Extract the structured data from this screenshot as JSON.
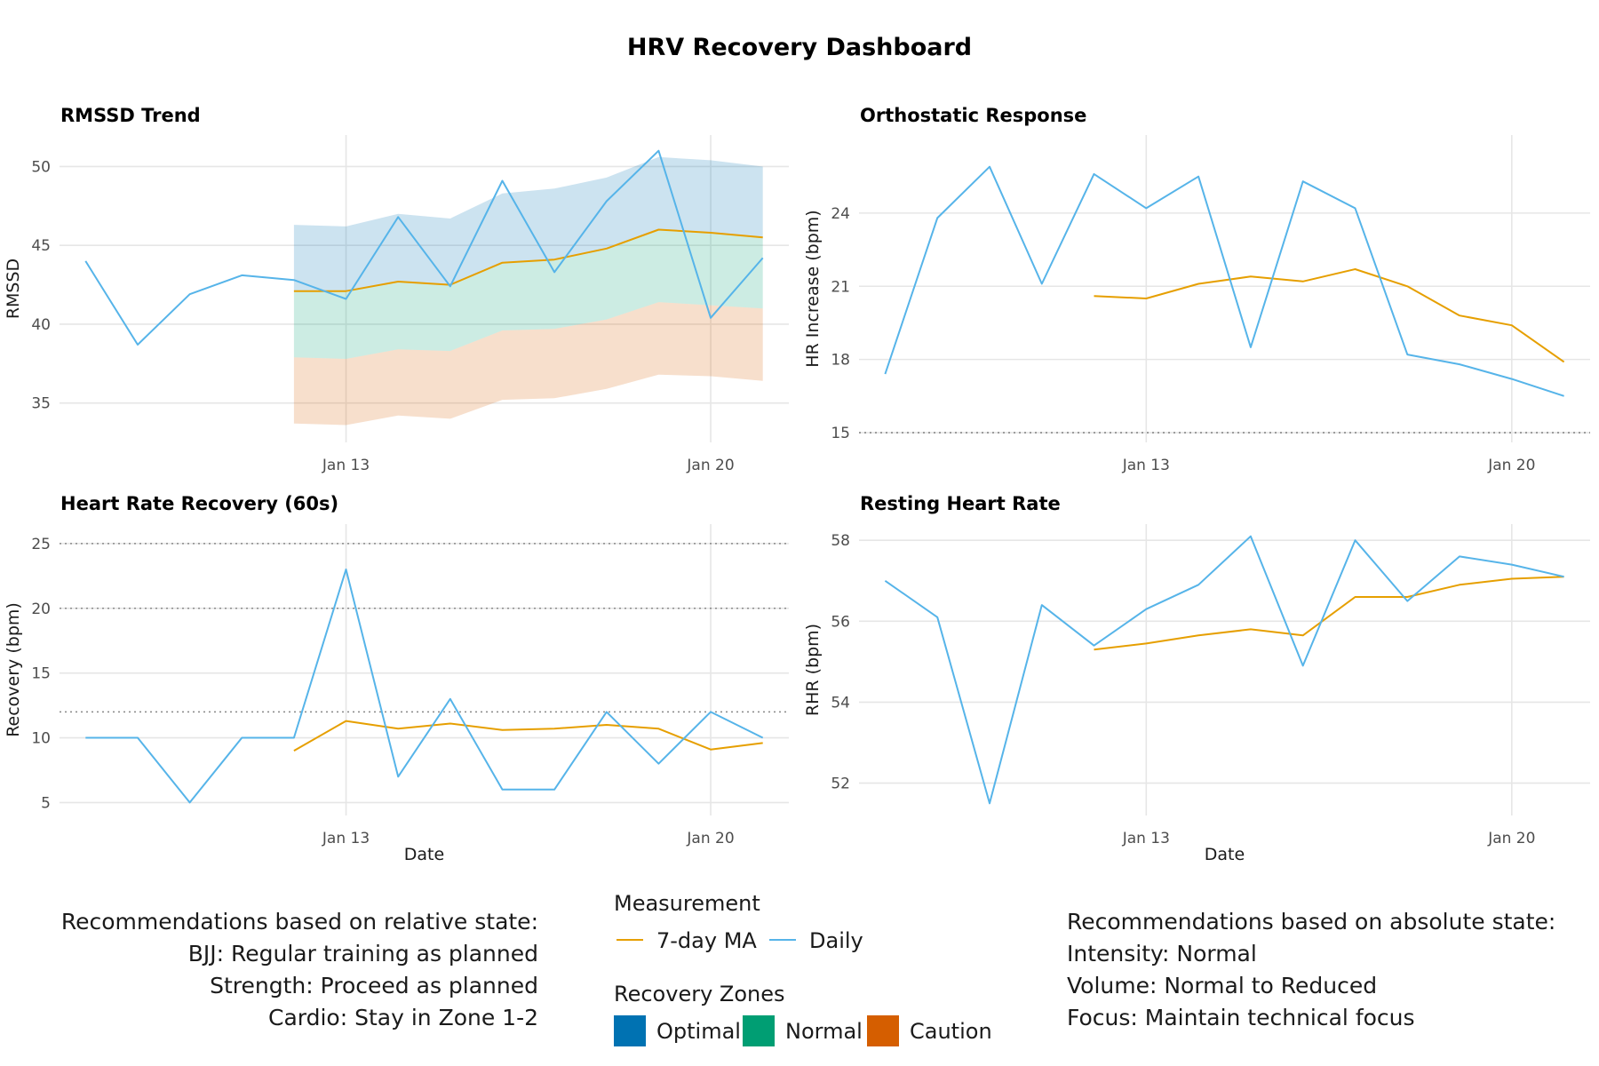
{
  "title": "HRV Recovery Dashboard",
  "colors": {
    "daily": "#56B4E9",
    "ma": "#E69F00",
    "optimal": "#0072B2",
    "normal": "#009E73",
    "caution": "#D55E00",
    "grid": "#e6e6e6",
    "text": "#1a1a1a",
    "reference_line": "#888888"
  },
  "legend": {
    "measurement_title": "Measurement",
    "measurement_items": [
      {
        "label": "7-day MA",
        "color": "#E69F00"
      },
      {
        "label": "Daily",
        "color": "#56B4E9"
      }
    ],
    "zones_title": "Recovery Zones",
    "zone_items": [
      {
        "label": "Optimal",
        "color": "#0072B2"
      },
      {
        "label": "Normal",
        "color": "#009E73"
      },
      {
        "label": "Caution",
        "color": "#D55E00"
      }
    ]
  },
  "recommendations_relative": {
    "heading": "Recommendations based on relative state:",
    "lines": [
      "BJJ: Regular training as planned",
      "Strength: Proceed as planned",
      "Cardio: Stay in Zone 1-2"
    ]
  },
  "recommendations_absolute": {
    "heading": "Recommendations based on absolute state:",
    "lines": [
      "Intensity: Normal",
      "Volume: Normal to Reduced",
      "Focus: Maintain technical focus"
    ]
  },
  "chart_data": [
    {
      "type": "line",
      "title": "RMSSD Trend",
      "xlabel": "",
      "ylabel": "RMSSD",
      "x": [
        "Jan 08",
        "Jan 09",
        "Jan 10",
        "Jan 11",
        "Jan 12",
        "Jan 13",
        "Jan 14",
        "Jan 15",
        "Jan 16",
        "Jan 17",
        "Jan 18",
        "Jan 19",
        "Jan 20",
        "Jan 21"
      ],
      "xticks": [
        "Jan 13",
        "Jan 20"
      ],
      "xlim": [
        "Jan 08",
        "Jan 21"
      ],
      "ylim": [
        32.5,
        52
      ],
      "yticks": [
        35,
        40,
        45,
        50
      ],
      "series": [
        {
          "name": "Daily",
          "color": "#56B4E9",
          "values": [
            44.0,
            38.7,
            41.9,
            43.1,
            42.8,
            41.6,
            46.8,
            42.4,
            49.1,
            43.3,
            47.8,
            51.0,
            40.4,
            44.2
          ]
        },
        {
          "name": "7-day MA",
          "color": "#E69F00",
          "values": [
            null,
            null,
            null,
            null,
            42.1,
            42.1,
            42.7,
            42.5,
            43.9,
            44.1,
            44.8,
            46.0,
            45.8,
            45.5
          ]
        }
      ],
      "bands": [
        {
          "name": "Caution",
          "color": "#D55E00",
          "lower": [
            33.7,
            33.6,
            34.2,
            34.0,
            35.2,
            35.3,
            35.9,
            36.8,
            36.7,
            36.4
          ],
          "upper": [
            37.9,
            37.8,
            38.4,
            38.3,
            39.6,
            39.7,
            40.3,
            41.4,
            41.2,
            41.0
          ]
        },
        {
          "name": "Normal",
          "color": "#009E73",
          "lower": [
            37.9,
            37.8,
            38.4,
            38.3,
            39.6,
            39.7,
            40.3,
            41.4,
            41.2,
            41.0
          ],
          "upper": [
            42.1,
            42.1,
            42.7,
            42.5,
            43.9,
            44.1,
            44.8,
            46.0,
            45.8,
            45.5
          ]
        },
        {
          "name": "Optimal",
          "color": "#0072B2",
          "lower": [
            42.1,
            42.1,
            42.7,
            42.5,
            43.9,
            44.1,
            44.8,
            46.0,
            45.8,
            45.5
          ],
          "upper": [
            46.3,
            46.2,
            47.0,
            46.7,
            48.3,
            48.6,
            49.3,
            50.6,
            50.4,
            50.0
          ]
        }
      ],
      "band_x": [
        "Jan 12",
        "Jan 13",
        "Jan 14",
        "Jan 15",
        "Jan 16",
        "Jan 17",
        "Jan 18",
        "Jan 19",
        "Jan 20",
        "Jan 21"
      ],
      "hlines": [],
      "grid": true
    },
    {
      "type": "line",
      "title": "Orthostatic Response",
      "xlabel": "",
      "ylabel": "HR Increase (bpm)",
      "x": [
        "Jan 08",
        "Jan 09",
        "Jan 10",
        "Jan 11",
        "Jan 12",
        "Jan 13",
        "Jan 14",
        "Jan 15",
        "Jan 16",
        "Jan 17",
        "Jan 18",
        "Jan 19",
        "Jan 20",
        "Jan 21"
      ],
      "xticks": [
        "Jan 13",
        "Jan 20"
      ],
      "xlim": [
        "Jan 08",
        "Jan 21"
      ],
      "ylim": [
        14.6,
        27.2
      ],
      "yticks": [
        15,
        18,
        21,
        24
      ],
      "series": [
        {
          "name": "Daily",
          "color": "#56B4E9",
          "values": [
            17.4,
            23.8,
            25.9,
            21.1,
            25.6,
            24.2,
            25.5,
            18.5,
            25.3,
            24.2,
            18.2,
            17.8,
            17.2,
            16.5
          ]
        },
        {
          "name": "7-day MA",
          "color": "#E69F00",
          "values": [
            null,
            null,
            null,
            null,
            20.6,
            20.5,
            21.1,
            21.4,
            21.2,
            21.7,
            21.0,
            19.8,
            19.4,
            17.9
          ]
        }
      ],
      "hlines": [
        15
      ],
      "grid": true
    },
    {
      "type": "line",
      "title": "Heart Rate Recovery (60s)",
      "xlabel": "Date",
      "ylabel": "Recovery (bpm)",
      "x": [
        "Jan 08",
        "Jan 09",
        "Jan 10",
        "Jan 11",
        "Jan 12",
        "Jan 13",
        "Jan 14",
        "Jan 15",
        "Jan 16",
        "Jan 17",
        "Jan 18",
        "Jan 19",
        "Jan 20",
        "Jan 21"
      ],
      "xticks": [
        "Jan 13",
        "Jan 20"
      ],
      "xlim": [
        "Jan 08",
        "Jan 21"
      ],
      "ylim": [
        4.0,
        26.5
      ],
      "yticks": [
        5,
        10,
        15,
        20,
        25
      ],
      "series": [
        {
          "name": "Daily",
          "color": "#56B4E9",
          "values": [
            10,
            10,
            5,
            10,
            10,
            23,
            7,
            13,
            6,
            6,
            12,
            8,
            12,
            10
          ]
        },
        {
          "name": "7-day MA",
          "color": "#E69F00",
          "values": [
            null,
            null,
            null,
            null,
            9.0,
            11.3,
            10.7,
            11.1,
            10.6,
            10.7,
            11.0,
            10.7,
            9.1,
            9.6
          ]
        }
      ],
      "hlines": [
        12,
        20,
        25
      ],
      "grid": true
    },
    {
      "type": "line",
      "title": "Resting Heart Rate",
      "xlabel": "Date",
      "ylabel": "RHR (bpm)",
      "x": [
        "Jan 08",
        "Jan 09",
        "Jan 10",
        "Jan 11",
        "Jan 12",
        "Jan 13",
        "Jan 14",
        "Jan 15",
        "Jan 16",
        "Jan 17",
        "Jan 18",
        "Jan 19",
        "Jan 20",
        "Jan 21"
      ],
      "xticks": [
        "Jan 13",
        "Jan 20"
      ],
      "xlim": [
        "Jan 08",
        "Jan 21"
      ],
      "ylim": [
        51.2,
        58.4
      ],
      "yticks": [
        52,
        54,
        56,
        58
      ],
      "series": [
        {
          "name": "Daily",
          "color": "#56B4E9",
          "values": [
            57.0,
            56.1,
            51.5,
            56.4,
            55.4,
            56.3,
            56.9,
            58.1,
            54.9,
            58.0,
            56.5,
            57.6,
            57.4,
            57.1
          ]
        },
        {
          "name": "7-day MA",
          "color": "#E69F00",
          "values": [
            null,
            null,
            null,
            null,
            55.3,
            55.45,
            55.65,
            55.8,
            55.65,
            56.6,
            56.6,
            56.9,
            57.05,
            57.1
          ]
        }
      ],
      "hlines": [],
      "grid": true
    }
  ]
}
